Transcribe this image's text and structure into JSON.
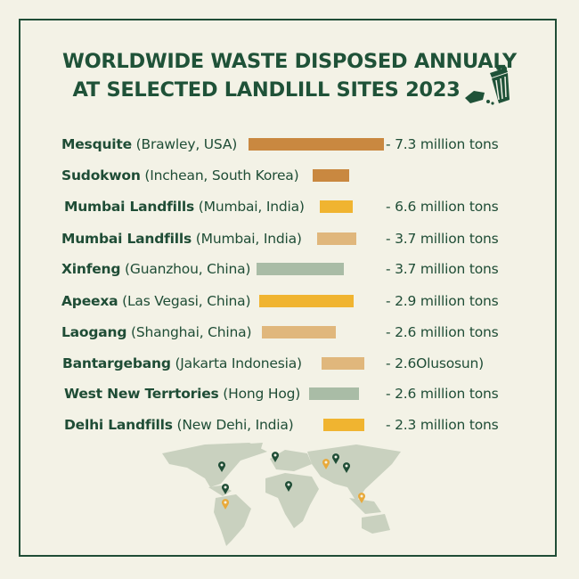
{
  "chart_data": {
    "type": "bar",
    "title": [
      "WORLDWIDE WASTE DISPOSED ANNUALY",
      "AT SELECTED LANDLILL SITES 2023"
    ],
    "items": [
      {
        "name": "Mesquite",
        "location": "(Brawley, USA)",
        "value_label": "- 7.3 million tons",
        "color": "#c98840"
      },
      {
        "name": "Sudokwon",
        "location": "(Inchean, South Korea)",
        "value_label": "",
        "color": "#c98840"
      },
      {
        "name": "Mumbai Landfills",
        "location": "(Mumbai, India)",
        "value_label": "- 6.6 million tons",
        "color": "#f0b430"
      },
      {
        "name": "Mumbai Landfills",
        "location": "(Mumbai, India)",
        "value_label": "- 3.7 million tons",
        "color": "#e0b77c"
      },
      {
        "name": "Xinfeng",
        "location": "(Guanzhou, China)",
        "value_label": "- 3.7 million tons",
        "color": "#a9bca6"
      },
      {
        "name": "Apeexa",
        "location": "(Las Vegasi, China)",
        "value_label": "- 2.9 million tons",
        "color": "#f0b430"
      },
      {
        "name": "Laogang",
        "location": "(Shanghai, China)",
        "value_label": "- 2.6 million tons",
        "color": "#e0b77c"
      },
      {
        "name": "Bantargebang",
        "location": "(Jakarta Indonesia)",
        "value_label": "- 2.6Olusosun)",
        "color": "#e0b77c"
      },
      {
        "name": "West New Terrtories",
        "location": "(Hong Hog)",
        "value_label": "- 2.6 million tons",
        "color": "#a9bca6"
      },
      {
        "name": "Delhi Landfills",
        "location": "(New Dehi, India)",
        "value_label": "- 2.3 million tons",
        "color": "#f0b430"
      }
    ]
  },
  "colors": {
    "text": "#1f4d36",
    "background": "#f3f2e6",
    "map": "#c9d1bf",
    "pin_green": "#1f4d36",
    "pin_orange": "#e9a93a"
  }
}
